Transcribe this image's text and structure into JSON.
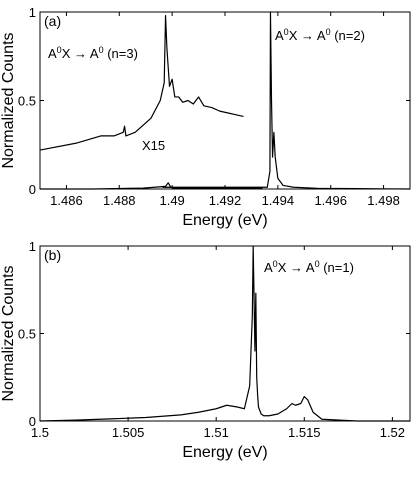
{
  "figure": {
    "panels": [
      {
        "panel_label": "(a)",
        "xlabel": "Energy (eV)",
        "ylabel": "Normalized Counts",
        "x_ticks": [
          "1.486",
          "1.488",
          "1.49",
          "1.492",
          "1.494",
          "1.496",
          "1.498"
        ],
        "y_ticks": [
          "0",
          "0.5",
          "1"
        ],
        "annotations": [
          "A⁰X → A⁰ (n=3)",
          "A⁰X → A⁰ (n=2)",
          "X15"
        ]
      },
      {
        "panel_label": "(b)",
        "xlabel": "Energy (eV)",
        "ylabel": "Normalized Counts",
        "x_ticks": [
          "1.5",
          "1.505",
          "1.51",
          "1.515",
          "1.52"
        ],
        "y_ticks": [
          "0",
          "0.5",
          "1"
        ],
        "annotations": [
          "A⁰X → A⁰ (n=1)"
        ]
      }
    ]
  },
  "chart_data": [
    {
      "type": "line",
      "title": "",
      "xlabel": "Energy (eV)",
      "ylabel": "Normalized Counts",
      "xlim": [
        1.485,
        1.499
      ],
      "ylim": [
        0,
        1
      ],
      "grid": false,
      "series": [
        {
          "x": [
            1.485,
            1.487,
            1.4889,
            1.48975,
            1.48985,
            1.48995,
            1.4901,
            1.4915,
            1.4934,
            1.48965,
            1.4936,
            1.4937,
            1.49372,
            1.49376,
            1.4938,
            1.49385,
            1.4939,
            1.494,
            1.4942,
            1.4946,
            1.4955,
            1.497,
            1.499
          ],
          "y": [
            0.0,
            0.0,
            0.005,
            0.015,
            0.035,
            0.01,
            0.004,
            0.004,
            0.004,
            0.01,
            0.01,
            0.1,
            1.0,
            0.5,
            0.18,
            0.32,
            0.18,
            0.06,
            0.02,
            0.01,
            0.004,
            0.002,
            0.0
          ]
        },
        {
          "x": [
            1.485,
            1.4864,
            1.4873,
            1.4878,
            1.48815,
            1.4882,
            1.48825,
            1.4886,
            1.4892,
            1.48955,
            1.4897,
            1.48975,
            1.4898,
            1.4899,
            1.49,
            1.4901,
            1.49025,
            1.4904,
            1.4906,
            1.4908,
            1.491,
            1.4912,
            1.4915,
            1.4918,
            1.4921,
            1.4924,
            1.4927
          ],
          "y": [
            0.22,
            0.26,
            0.3,
            0.3,
            0.32,
            0.355,
            0.3,
            0.32,
            0.4,
            0.5,
            0.6,
            0.98,
            0.8,
            0.58,
            0.62,
            0.52,
            0.52,
            0.49,
            0.5,
            0.48,
            0.52,
            0.47,
            0.46,
            0.44,
            0.43,
            0.42,
            0.41
          ]
        }
      ]
    },
    {
      "type": "line",
      "title": "",
      "xlabel": "Energy (eV)",
      "ylabel": "Normalized Counts",
      "xlim": [
        1.5,
        1.521
      ],
      "ylim": [
        0,
        1
      ],
      "grid": false,
      "series": [
        {
          "x": [
            1.5,
            1.502,
            1.504,
            1.506,
            1.508,
            1.509,
            1.51,
            1.5106,
            1.5112,
            1.5116,
            1.5119,
            1.51205,
            1.5121,
            1.5122,
            1.51225,
            1.5123,
            1.51235,
            1.5124,
            1.51255,
            1.5127,
            1.513,
            1.5135,
            1.514,
            1.5143,
            1.5145,
            1.5148,
            1.515,
            1.5152,
            1.5155,
            1.516,
            1.518,
            1.521
          ],
          "y": [
            0.0,
            0.005,
            0.012,
            0.02,
            0.035,
            0.05,
            0.07,
            0.09,
            0.08,
            0.07,
            0.2,
            0.6,
            1.0,
            0.4,
            0.73,
            0.25,
            0.15,
            0.08,
            0.04,
            0.03,
            0.03,
            0.04,
            0.07,
            0.1,
            0.09,
            0.1,
            0.14,
            0.12,
            0.05,
            0.01,
            0.0,
            0.0
          ]
        }
      ]
    }
  ]
}
